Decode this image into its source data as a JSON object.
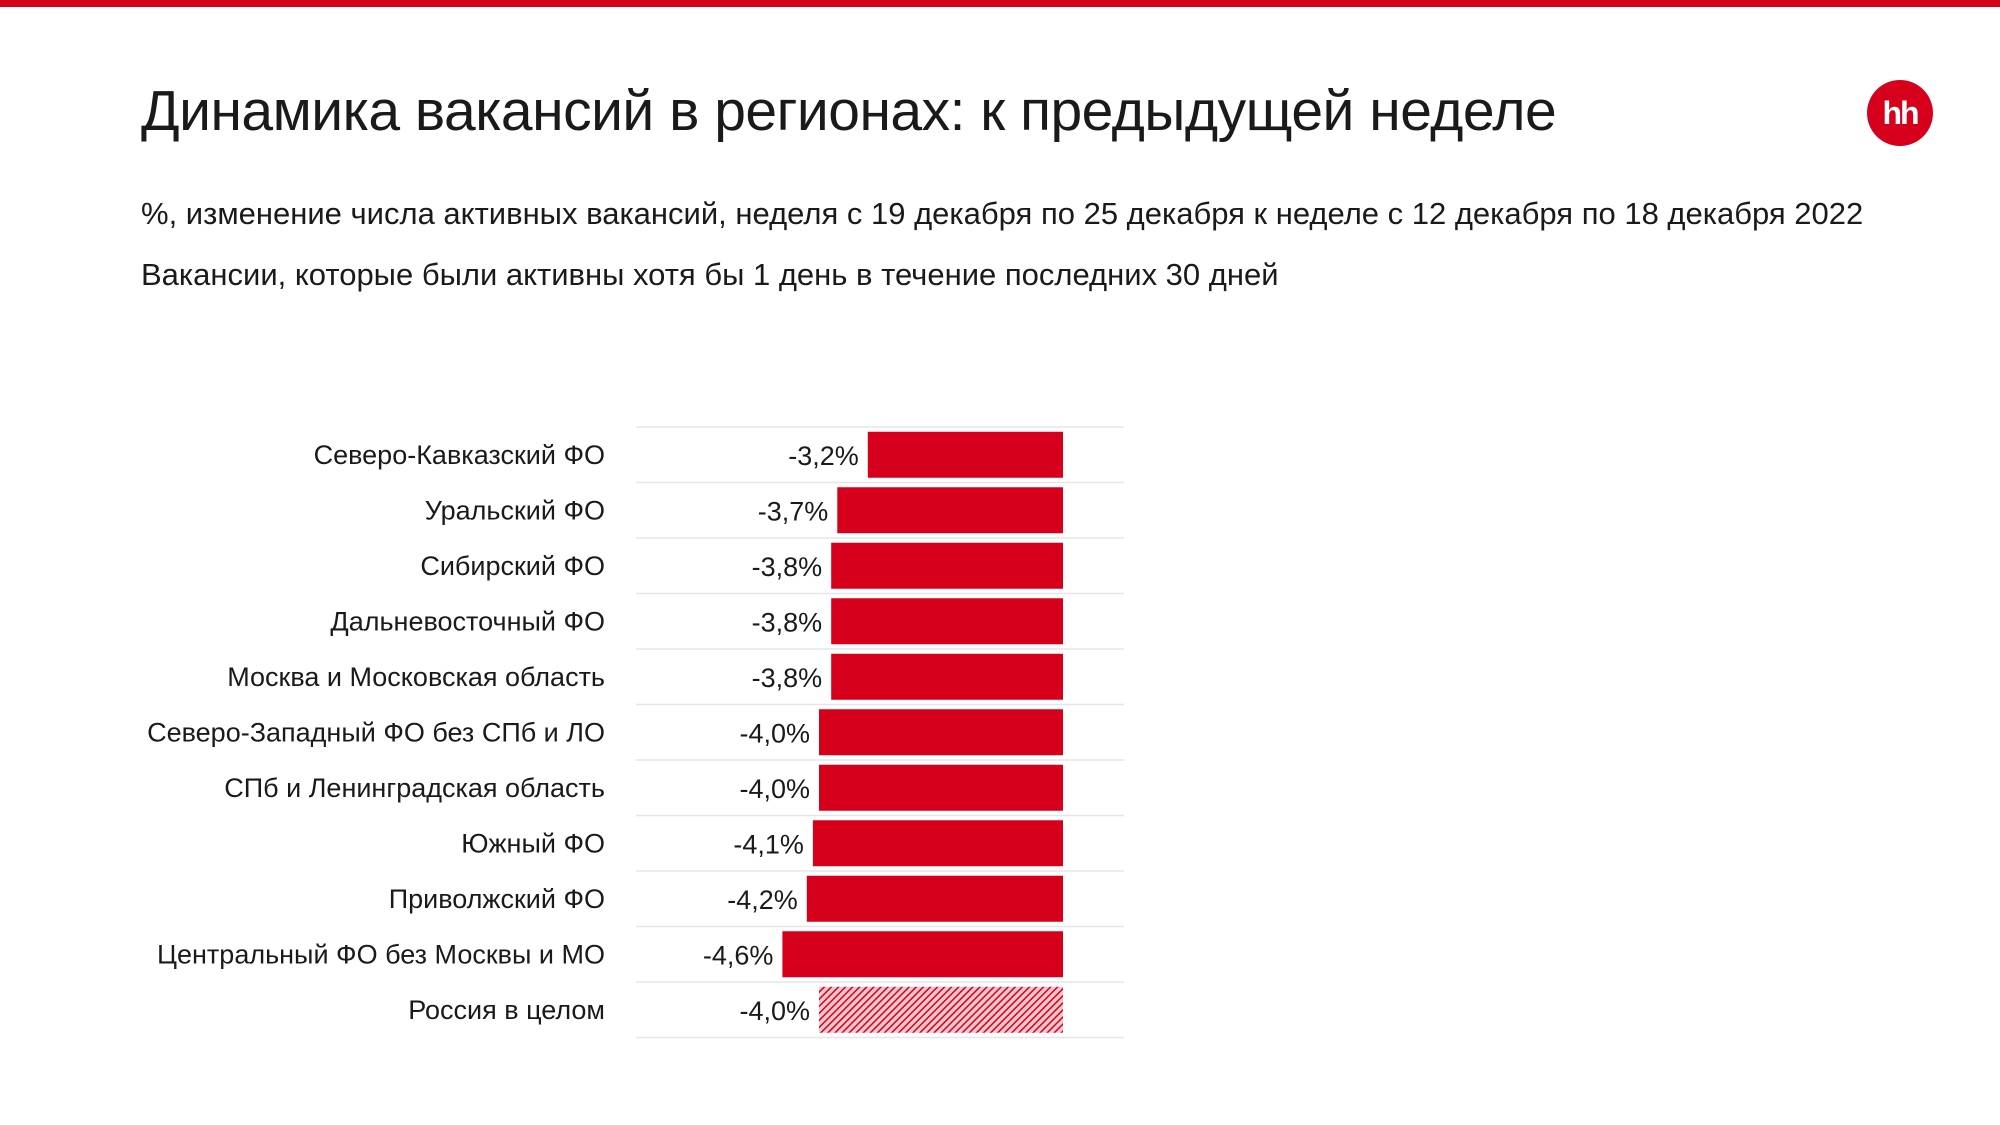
{
  "header": {
    "title": "Динамика вакансий в регионах: к предыдущей неделе",
    "subtitle_1": "%, изменение числа активных вакансий, неделя с 19 декабря по 25 декабря к неделе с 12 декабря по 18 декабря 2022",
    "subtitle_2": "Вакансии, которые были активны хотя бы 1 день в течение последних 30 дней"
  },
  "logo": {
    "text": "hh"
  },
  "colors": {
    "accent": "#d6001c",
    "grid": "#e6e6e6"
  },
  "chart_data": {
    "type": "bar",
    "orientation": "horizontal",
    "categories": [
      "Северо-Кавказский ФО",
      "Уральский ФО",
      "Сибирский ФО",
      "Дальневосточный ФО",
      "Москва и Московская область",
      "Северо-Западный ФО без СПб и ЛО",
      "СПб и Ленинградская область",
      "Южный ФО",
      "Приволжский ФО",
      "Центральный ФО без Москвы и МО",
      "Россия в целом"
    ],
    "values": [
      -3.2,
      -3.7,
      -3.8,
      -3.8,
      -3.8,
      -4.0,
      -4.0,
      -4.1,
      -4.2,
      -4.6,
      -4.0
    ],
    "labels": [
      "-3,2%",
      "-3,7%",
      "-3,8%",
      "-3,8%",
      "-3,8%",
      "-4,0%",
      "-4,0%",
      "-4,1%",
      "-4,2%",
      "-4,6%",
      "-4,0%"
    ],
    "highlight": [
      false,
      false,
      false,
      false,
      false,
      false,
      false,
      false,
      false,
      false,
      true
    ],
    "xlim": [
      -7,
      1
    ],
    "grid": true,
    "legend": "none"
  }
}
